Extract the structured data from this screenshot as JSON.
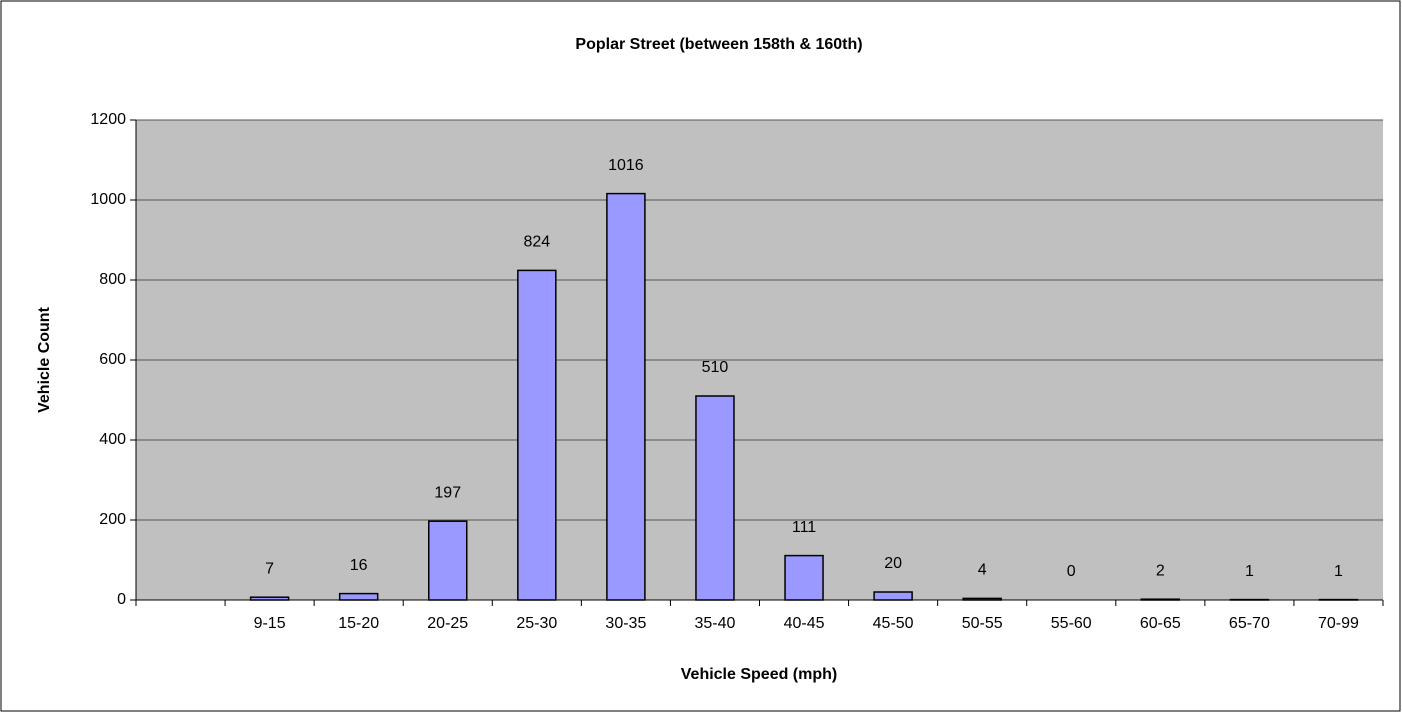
{
  "chart_data": {
    "type": "bar",
    "title": "Poplar Street (between 158th & 160th)",
    "x_label": "Vehicle Speed (mph)",
    "y_label": "Vehicle Count",
    "categories": [
      null,
      "9-15",
      "15-20",
      "20-25",
      "25-30",
      "30-35",
      "35-40",
      "40-45",
      "45-50",
      "50-55",
      "55-60",
      "60-65",
      "65-70",
      "70-99"
    ],
    "values": [
      null,
      7,
      16,
      197,
      824,
      1016,
      510,
      111,
      20,
      4,
      0,
      2,
      1,
      1
    ],
    "color": "#9999ff",
    "ylim": [
      0,
      1200
    ],
    "yticks": [
      0,
      200,
      400,
      600,
      800,
      1000,
      1200
    ],
    "grid": true
  }
}
